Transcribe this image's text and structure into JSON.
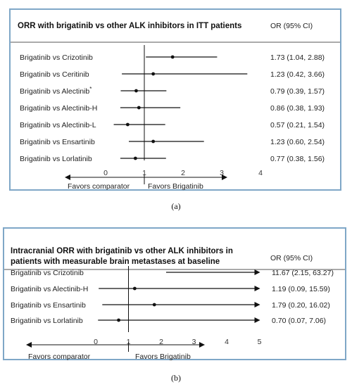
{
  "chart_data": [
    {
      "type": "forest",
      "title_lines": [
        "ORR with brigatinib vs other ALK inhibitors in ITT patients"
      ],
      "ci_header": "OR (95% CI)",
      "rows": [
        {
          "label": "Brigatinib vs Crizotinib",
          "or": 1.73,
          "lo": 1.04,
          "hi": 2.88,
          "ci_text": "1.73 (1.04, 2.88)",
          "arrow_right": false
        },
        {
          "label": "Brigatinib vs Ceritinib",
          "or": 1.23,
          "lo": 0.42,
          "hi": 3.66,
          "ci_text": "1.23 (0.42, 3.66)",
          "arrow_right": false
        },
        {
          "label": "Brigatinib vs Alectinib",
          "label_mark": "*",
          "or": 0.79,
          "lo": 0.39,
          "hi": 1.57,
          "ci_text": "0.79 (0.39, 1.57)",
          "arrow_right": false
        },
        {
          "label": "Brigatinib vs Alectinib-H",
          "or": 0.86,
          "lo": 0.38,
          "hi": 1.93,
          "ci_text": "0.86 (0.38, 1.93)",
          "arrow_right": false
        },
        {
          "label": "Brigatinib vs Alectinib-L",
          "or": 0.57,
          "lo": 0.21,
          "hi": 1.54,
          "ci_text": "0.57 (0.21, 1.54)",
          "arrow_right": false
        },
        {
          "label": "Brigatinib vs Ensartinib",
          "or": 1.23,
          "lo": 0.6,
          "hi": 2.54,
          "ci_text": "1.23 (0.60, 2.54)",
          "arrow_right": false
        },
        {
          "label": "Brigatinib vs Lorlatinib",
          "or": 0.77,
          "lo": 0.38,
          "hi": 1.56,
          "ci_text": "0.77 (0.38, 1.56)",
          "arrow_right": false
        }
      ],
      "xticks": [
        0,
        1,
        2,
        3,
        4
      ],
      "xlim": [
        0,
        4
      ],
      "reference_line": 1,
      "left_arrow_label": "Favors comparator",
      "right_arrow_label": "Favors Brigatinib",
      "caption": "(a)"
    },
    {
      "type": "forest",
      "title_lines": [
        "Intracranial ORR with brigatinib vs other ALK inhibitors in",
        "patients with measurable brain metastases at baseline"
      ],
      "ci_header": "OR (95% CI)",
      "rows": [
        {
          "label": "Brigatinib vs Crizotinib",
          "or": 11.67,
          "lo": 2.15,
          "hi": 63.27,
          "ci_text": "11.67 (2.15, 63.27)",
          "arrow_right": true
        },
        {
          "label": "Brigatinib vs Alectinib-H",
          "or": 1.19,
          "lo": 0.09,
          "hi": 15.59,
          "ci_text": "1.19 (0.09, 15.59)",
          "arrow_right": true
        },
        {
          "label": "Brigatinib vs Ensartinib",
          "or": 1.79,
          "lo": 0.2,
          "hi": 16.02,
          "ci_text": "1.79 (0.20, 16.02)",
          "arrow_right": true
        },
        {
          "label": "Brigatinib vs Lorlatinib",
          "or": 0.7,
          "lo": 0.07,
          "hi": 7.06,
          "ci_text": "0.70 (0.07, 7.06)",
          "arrow_right": true
        }
      ],
      "xticks": [
        0,
        1,
        2,
        3,
        4,
        5
      ],
      "xlim": [
        0,
        5
      ],
      "reference_line": 1,
      "left_arrow_label": "Favors comparator",
      "right_arrow_label": "Favors Brigatinib",
      "caption": "(b)"
    }
  ]
}
